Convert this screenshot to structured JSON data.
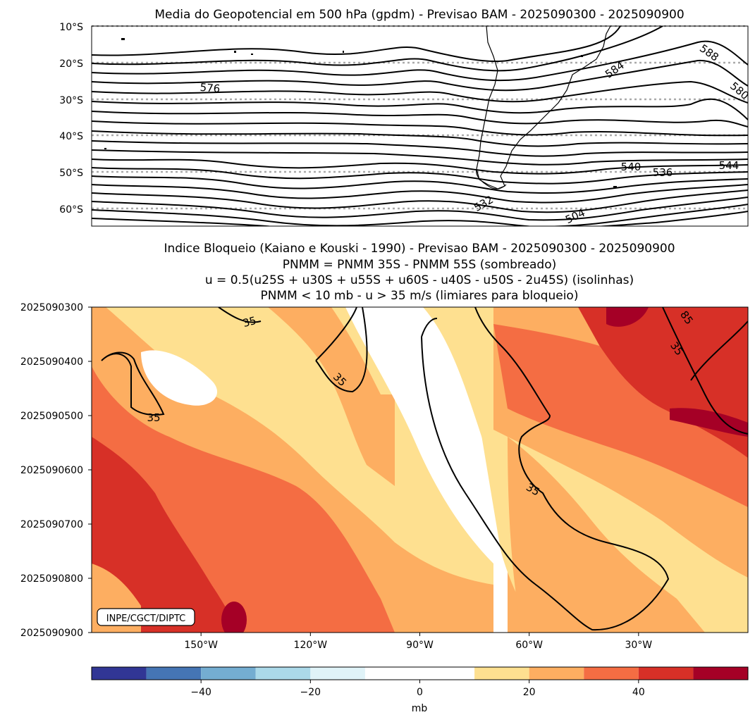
{
  "chart_data": [
    {
      "type": "contour-map",
      "title": "Media do Geopotencial em 500 hPa (gpdm) - Previsao BAM - 2025090300 - 2025090900",
      "ytick_labels": [
        "10°S",
        "20°S",
        "30°S",
        "40°S",
        "50°S",
        "60°S"
      ],
      "lat_ticks": [
        -10,
        -20,
        -30,
        -40,
        -50,
        -60
      ],
      "ylim": [
        -65,
        -10
      ],
      "xlim": [
        -180,
        0
      ],
      "grid": "dotted horizontal",
      "contour_interval": 4,
      "contour_labels": [
        "576",
        "584",
        "588",
        "580",
        "540",
        "536",
        "544",
        "532",
        "504"
      ]
    },
    {
      "type": "hovmoller-filled-contour",
      "title_lines": [
        "Indice Bloqueio (Kaiano e Kouski - 1990) - Previsao BAM - 2025090300 - 2025090900",
        "PNMM = PNMM 35S - PNMM 55S (sombreado)",
        "u = 0.5(u25S + u30S + u55S + u60S - u40S - u50S - 2u45S) (isolinhas)",
        "PNMM < 10 mb - u > 35 m/s (limiares para bloqueio)"
      ],
      "ytick_labels": [
        "2025090300",
        "2025090400",
        "2025090500",
        "2025090600",
        "2025090700",
        "2025090800",
        "2025090900"
      ],
      "xtick_labels": [
        "150°W",
        "120°W",
        "90°W",
        "60°W",
        "30°W"
      ],
      "x_ticks": [
        -150,
        -120,
        -90,
        -60,
        -30
      ],
      "xlim": [
        -180,
        0
      ],
      "contour_labels": [
        "35",
        "35",
        "35",
        "35",
        "85",
        "35"
      ],
      "credit": "INPE/CGCT/DIPTC"
    },
    {
      "type": "colorbar",
      "levels": [
        -60,
        -50,
        -40,
        -30,
        -20,
        -10,
        10,
        20,
        30,
        40,
        50,
        60
      ],
      "colors": [
        "#313695",
        "#4575b4",
        "#74add1",
        "#abd9e9",
        "#e0f3f8",
        "#ffffff",
        "#fee090",
        "#fdae61",
        "#f46d43",
        "#d73027",
        "#a50026"
      ],
      "tick_values": [
        -40,
        -20,
        0,
        20,
        40
      ],
      "tick_labels": [
        "−40",
        "−20",
        "0",
        "20",
        "40"
      ],
      "label": "mb"
    }
  ]
}
